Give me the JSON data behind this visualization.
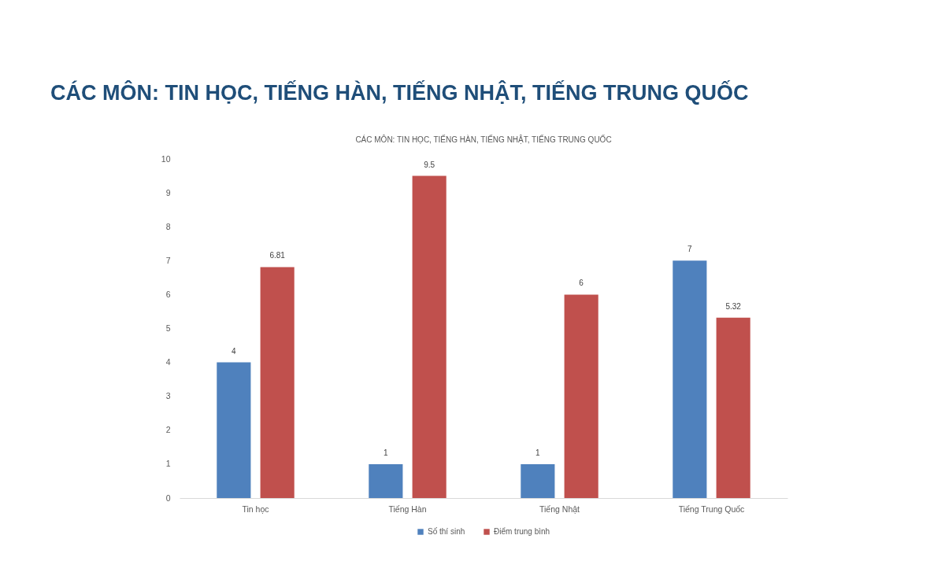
{
  "chart_data": {
    "type": "bar",
    "title": "CÁC MÔN: TIN HỌC, TIẾNG HÀN, TIẾNG NHẬT, TIẾNG TRUNG QUỐC",
    "subtitle": "CÁC MÔN: TIN HỌC, TIẾNG HÀN, TIẾNG NHẬT, TIẾNG TRUNG QUỐC",
    "categories": [
      "Tin học",
      "Tiếng Hàn",
      "Tiếng Nhật",
      "Tiếng Trung Quốc"
    ],
    "series": [
      {
        "name": "Số thí sinh",
        "color": "#4f81bd",
        "values": [
          4,
          1,
          1,
          7
        ]
      },
      {
        "name": "Điểm trung bình",
        "color": "#c0504d",
        "values": [
          6.81,
          9.5,
          6,
          5.32
        ]
      }
    ],
    "ylim": [
      0,
      10
    ],
    "yticks": [
      0,
      1,
      2,
      3,
      4,
      5,
      6,
      7,
      8,
      9,
      10
    ],
    "data_labels": true,
    "grid": false,
    "legend": "bottom"
  }
}
